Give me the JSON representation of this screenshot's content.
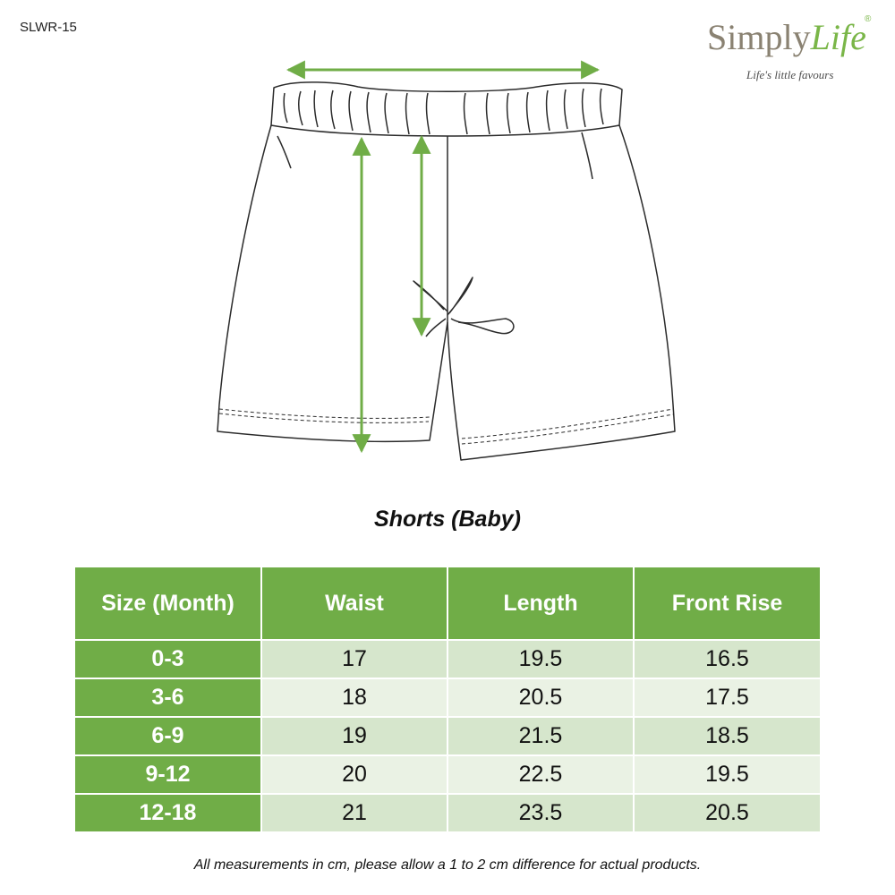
{
  "header": {
    "sku": "SLWR-15"
  },
  "brand": {
    "name_part1": "Simply",
    "name_part2": "Life",
    "registered": "®",
    "tagline": "Life's little favours",
    "colors": {
      "grey": "#8a8272",
      "green": "#7ab648"
    }
  },
  "product": {
    "title": "Shorts (Baby)",
    "illustration": "baby-shorts-measurement-diagram",
    "measure_color": "#70ad47"
  },
  "table": {
    "headers": [
      "Size (Month)",
      "Waist",
      "Length",
      "Front Rise"
    ],
    "rows": [
      [
        "0-3",
        "17",
        "19.5",
        "16.5"
      ],
      [
        "3-6",
        "18",
        "20.5",
        "17.5"
      ],
      [
        "6-9",
        "19",
        "21.5",
        "18.5"
      ],
      [
        "9-12",
        "20",
        "22.5",
        "19.5"
      ],
      [
        "12-18",
        "21",
        "23.5",
        "20.5"
      ]
    ],
    "colors": {
      "header": "#70ad47",
      "row_dark": "#d6e6cc",
      "row_light": "#eaf2e4"
    }
  },
  "footnote": "All measurements in cm, please allow a 1 to 2 cm difference for actual products."
}
